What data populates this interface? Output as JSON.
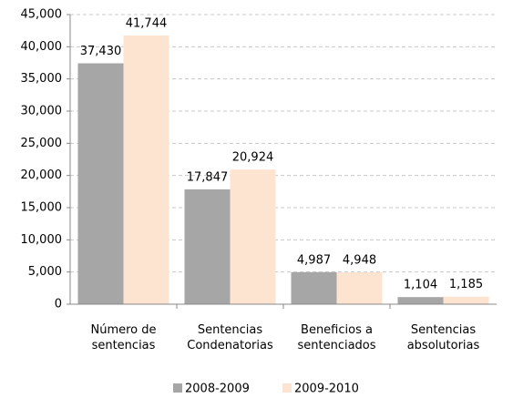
{
  "chart_data": {
    "type": "bar",
    "categories": [
      "Número de\nsentencias",
      "Sentencias\nCondenatorias",
      "Beneficios a\nsentenciados",
      "Sentencias\nabsolutorias"
    ],
    "series": [
      {
        "name": "2008-2009",
        "color": "#a6a6a6",
        "values": [
          37430,
          17847,
          4987,
          1104
        ],
        "value_labels": [
          "37,430",
          "17,847",
          "4,987",
          "1,104"
        ]
      },
      {
        "name": "2009-2010",
        "color": "#fde4d0",
        "values": [
          41744,
          20924,
          4948,
          1185
        ],
        "value_labels": [
          "41,744",
          "20,924",
          "4,948",
          "1,185"
        ]
      }
    ],
    "ylim": [
      0,
      45000
    ],
    "yticks": [
      0,
      {
        "value": 5000,
        "label": "5,000"
      },
      {
        "value": 10000,
        "label": "10,000"
      },
      {
        "value": 15000,
        "label": "15,000"
      },
      {
        "value": 20000,
        "label": "20,000"
      },
      {
        "value": 25000,
        "label": "25,000"
      },
      {
        "value": 30000,
        "label": "30,000"
      },
      {
        "value": 35000,
        "label": "35,000"
      },
      {
        "value": 40000,
        "label": "40,000"
      },
      {
        "value": 45000,
        "label": "45,000"
      }
    ],
    "grid": true,
    "legend": "bottom"
  }
}
